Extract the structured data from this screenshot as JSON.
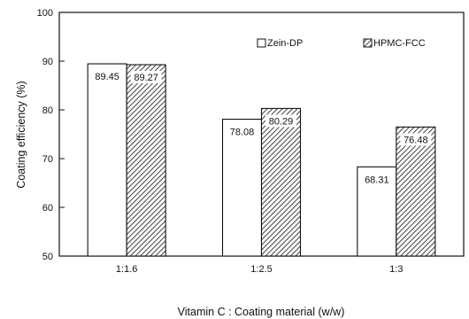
{
  "chart_data": {
    "type": "bar",
    "title": "",
    "xlabel": "Vitamin C : Coating material (w/w)",
    "ylabel": "Coating efficiency (%)",
    "ylim": [
      50,
      100
    ],
    "yticks": [
      "50",
      "60",
      "70",
      "80",
      "90",
      "100"
    ],
    "categories": [
      "1:1.6",
      "1:2.5",
      "1:3"
    ],
    "series": [
      {
        "name": "Zein-DP",
        "values": [
          89.45,
          78.08,
          68.31
        ],
        "labels": [
          "89.45",
          "78.08",
          "68.31"
        ],
        "fill": "#ffffff",
        "pattern": "none"
      },
      {
        "name": "HPMC-FCC",
        "values": [
          89.27,
          80.29,
          76.48
        ],
        "labels": [
          "89.27",
          "80.29",
          "76.48"
        ],
        "fill": "#ffffff",
        "pattern": "diagonal-hatch"
      }
    ],
    "legend_position": "top-right",
    "grid": false
  }
}
